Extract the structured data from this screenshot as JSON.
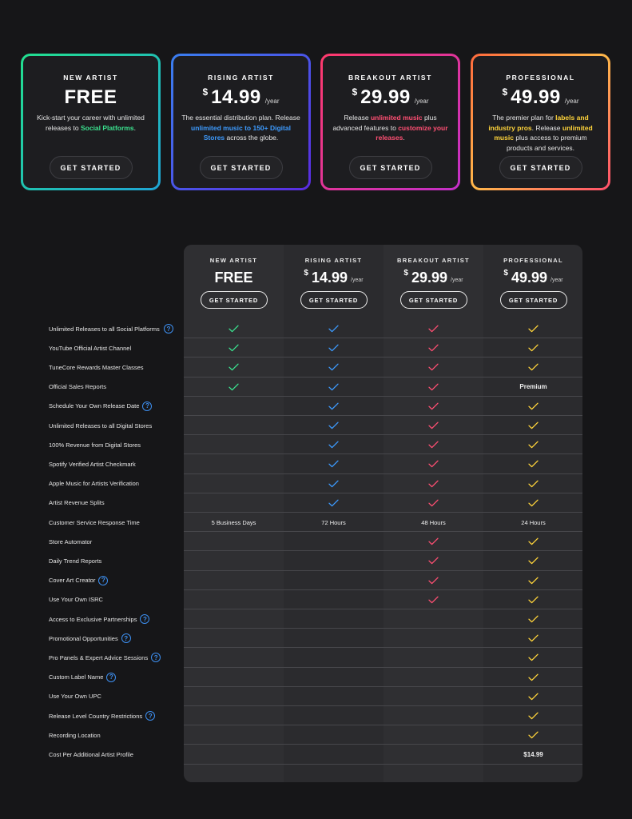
{
  "colors": {
    "new_artist": "#3be28f",
    "rising_artist": "#3d9bff",
    "breakout_artist": "#ff4f73",
    "professional": "#ffd43b"
  },
  "cards": [
    {
      "id": "new-artist",
      "title": "NEW ARTIST",
      "currency": "",
      "price": "FREE",
      "period": "",
      "desc_parts": [
        {
          "text": "Kick-start your career with unlimited releases to ",
          "hl": false
        },
        {
          "text": "Social Platforms",
          "hl": true
        },
        {
          "text": ".",
          "hl": false
        }
      ],
      "button": "GET STARTED"
    },
    {
      "id": "rising-artist",
      "title": "RISING ARTIST",
      "currency": "$",
      "price": "14.99",
      "period": "/year",
      "desc_parts": [
        {
          "text": "The essential distribution plan. Release ",
          "hl": false
        },
        {
          "text": "unlimited music to 150+ Digital Stores",
          "hl": true
        },
        {
          "text": " across the globe.",
          "hl": false
        }
      ],
      "button": "GET STARTED"
    },
    {
      "id": "breakout-artist",
      "title": "BREAKOUT ARTIST",
      "currency": "$",
      "price": "29.99",
      "period": "/year",
      "desc_parts": [
        {
          "text": "Release ",
          "hl": false
        },
        {
          "text": "unlimited music",
          "hl": true
        },
        {
          "text": " plus advanced features to ",
          "hl": false
        },
        {
          "text": "customize your releases",
          "hl": true
        },
        {
          "text": ".",
          "hl": false
        }
      ],
      "button": "GET STARTED"
    },
    {
      "id": "professional",
      "title": "PROFESSIONAL",
      "currency": "$",
      "price": "49.99",
      "period": "/year",
      "desc_parts": [
        {
          "text": "The premier plan for ",
          "hl": false
        },
        {
          "text": "labels and industry pros",
          "hl": true
        },
        {
          "text": ". Release ",
          "hl": false
        },
        {
          "text": "unlimited music",
          "hl": true
        },
        {
          "text": " plus access to premium products and services.",
          "hl": false
        }
      ],
      "button": "GET STARTED"
    }
  ],
  "table": {
    "columns": [
      {
        "title": "NEW ARTIST",
        "currency": "",
        "price": "FREE",
        "period": "",
        "button": "GET STARTED"
      },
      {
        "title": "RISING ARTIST",
        "currency": "$",
        "price": "14.99",
        "period": "/year",
        "button": "GET STARTED"
      },
      {
        "title": "BREAKOUT ARTIST",
        "currency": "$",
        "price": "29.99",
        "period": "/year",
        "button": "GET STARTED"
      },
      {
        "title": "PROFESSIONAL",
        "currency": "$",
        "price": "49.99",
        "period": "/year",
        "button": "GET STARTED"
      }
    ],
    "rows": [
      {
        "feature": "Unlimited Releases to all Social Platforms",
        "help": true,
        "cells": [
          "check",
          "check",
          "check",
          "check"
        ]
      },
      {
        "feature": "YouTube Official Artist Channel",
        "help": false,
        "cells": [
          "check",
          "check",
          "check",
          "check"
        ]
      },
      {
        "feature": "TuneCore Rewards Master Classes",
        "help": false,
        "cells": [
          "check",
          "check",
          "check",
          "check"
        ]
      },
      {
        "feature": "Official Sales Reports",
        "help": false,
        "cells": [
          "check",
          "check",
          "check",
          "Premium"
        ]
      },
      {
        "feature": "Schedule Your Own Release Date",
        "help": true,
        "cells": [
          "",
          "check",
          "check",
          "check"
        ]
      },
      {
        "feature": "Unlimited Releases to all Digital Stores",
        "help": false,
        "cells": [
          "",
          "check",
          "check",
          "check"
        ]
      },
      {
        "feature": "100% Revenue from Digital Stores",
        "help": false,
        "cells": [
          "",
          "check",
          "check",
          "check"
        ]
      },
      {
        "feature": "Spotify Verified Artist Checkmark",
        "help": false,
        "cells": [
          "",
          "check",
          "check",
          "check"
        ]
      },
      {
        "feature": "Apple Music for Artists Verification",
        "help": false,
        "cells": [
          "",
          "check",
          "check",
          "check"
        ]
      },
      {
        "feature": "Artist Revenue Splits",
        "help": false,
        "cells": [
          "",
          "check",
          "check",
          "check"
        ]
      },
      {
        "feature": "Customer Service Response Time",
        "help": false,
        "cells": [
          "5 Business Days",
          "72 Hours",
          "48 Hours",
          "24 Hours"
        ]
      },
      {
        "feature": "Store Automator",
        "help": false,
        "cells": [
          "",
          "",
          "check",
          "check"
        ]
      },
      {
        "feature": "Daily Trend Reports",
        "help": false,
        "cells": [
          "",
          "",
          "check",
          "check"
        ]
      },
      {
        "feature": "Cover Art Creator",
        "help": true,
        "cells": [
          "",
          "",
          "check",
          "check"
        ]
      },
      {
        "feature": "Use Your Own ISRC",
        "help": false,
        "cells": [
          "",
          "",
          "check",
          "check"
        ]
      },
      {
        "feature": "Access to Exclusive Partnerships",
        "help": true,
        "cells": [
          "",
          "",
          "",
          "check"
        ]
      },
      {
        "feature": "Promotional Opportunities",
        "help": true,
        "cells": [
          "",
          "",
          "",
          "check"
        ]
      },
      {
        "feature": "Pro Panels & Expert Advice Sessions",
        "help": true,
        "cells": [
          "",
          "",
          "",
          "check"
        ]
      },
      {
        "feature": "Custom Label Name",
        "help": true,
        "cells": [
          "",
          "",
          "",
          "check"
        ]
      },
      {
        "feature": "Use Your Own UPC",
        "help": false,
        "cells": [
          "",
          "",
          "",
          "check"
        ]
      },
      {
        "feature": "Release Level Country Restrictions",
        "help": true,
        "cells": [
          "",
          "",
          "",
          "check"
        ]
      },
      {
        "feature": "Recording Location",
        "help": false,
        "cells": [
          "",
          "",
          "",
          "check"
        ]
      },
      {
        "feature": "Cost Per Additional Artist Profile",
        "help": false,
        "cells": [
          "",
          "",
          "",
          "$14.99"
        ]
      }
    ]
  }
}
